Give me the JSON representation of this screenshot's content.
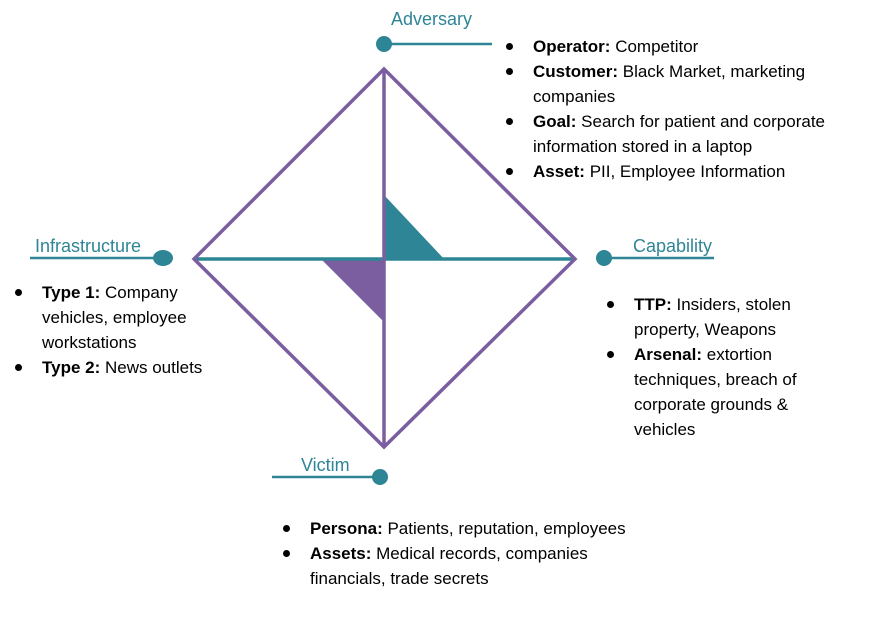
{
  "colors": {
    "teal": "#2e8596",
    "purple": "#7b5ea0"
  },
  "adversary": {
    "label": "Adversary",
    "items": [
      {
        "key": "Operator:",
        "text": " Competitor"
      },
      {
        "key": "Customer:",
        "text": " Black Market, marketing companies"
      },
      {
        "key": "Goal:",
        "text": " Search for patient and corporate information stored in a laptop"
      },
      {
        "key": "Asset:",
        "text": " PII, Employee Information"
      }
    ]
  },
  "infrastructure": {
    "label": "Infrastructure",
    "items": [
      {
        "key": "Type 1:",
        "text": " Company vehicles, employee workstations"
      },
      {
        "key": "Type 2:",
        "text": " News outlets"
      }
    ]
  },
  "capability": {
    "label": "Capability",
    "items": [
      {
        "key": "TTP:",
        "text": " Insiders, stolen property, Weapons"
      },
      {
        "key": "Arsenal:",
        "text": " extortion techniques, breach of corporate grounds & vehicles"
      }
    ]
  },
  "victim": {
    "label": "Victim",
    "items": [
      {
        "key": "Persona:",
        "text": " Patients, reputation, employees"
      },
      {
        "key": "Assets:",
        "text": " Medical records, companies financials, trade secrets"
      }
    ]
  }
}
